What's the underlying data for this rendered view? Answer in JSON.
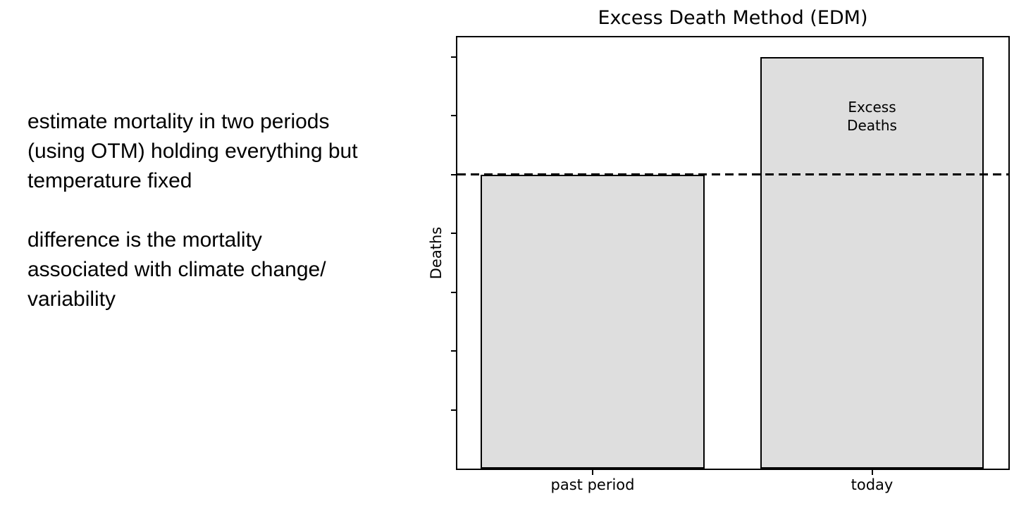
{
  "notes": {
    "para1": "estimate mortality in two periods\n(using OTM) holding everything but\ntemperature fixed",
    "para2": "difference is the mortality\nassociated with climate change/\nvariability"
  },
  "chart_data": {
    "type": "bar",
    "title": "Excess Death Method (EDM)",
    "xlabel": "",
    "ylabel": "Deaths",
    "categories": [
      "past period",
      "today"
    ],
    "values": [
      5,
      7
    ],
    "ylim": [
      0,
      7.4
    ],
    "ytick_step": 1,
    "yticks_labeled": false,
    "grid": false,
    "legend": "none",
    "dashed_reference_line_y": 5,
    "annotation": {
      "text": "Excess\nDeaths",
      "target": "today",
      "position": "upper-center-inside-bar"
    },
    "colors": {
      "bar_fill": "#dedede",
      "bar_edge": "#000000",
      "dashed_line": "#000000",
      "text": "#000000",
      "background": "#ffffff"
    }
  }
}
